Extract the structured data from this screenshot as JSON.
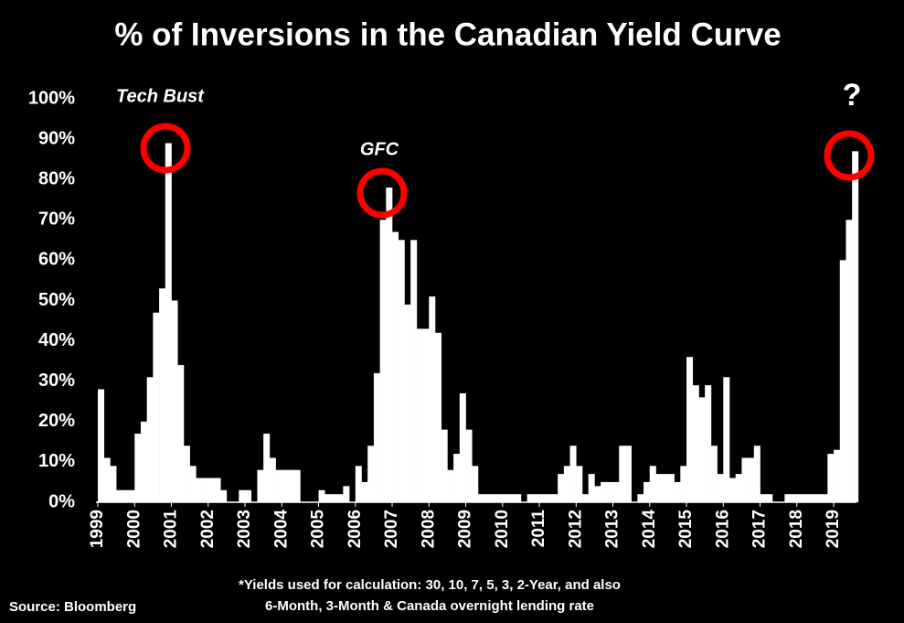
{
  "chart_data": {
    "type": "bar",
    "title": "% of Inversions in the Canadian Yield Curve",
    "annotations": [
      "Tech Bust",
      "GFC",
      "?"
    ],
    "footnote": [
      "*Yields used for calculation: 30, 10, 7, 5, 3, 2-Year, and also",
      "6-Month, 3-Month & Canada overnight lending rate"
    ],
    "source": "Source: Bloomberg",
    "color": "#ffffff",
    "x": [
      1999,
      1999.167,
      1999.333,
      1999.5,
      1999.667,
      1999.833,
      2000,
      2000.167,
      2000.333,
      2000.5,
      2000.667,
      2000.833,
      2001,
      2001.167,
      2001.333,
      2001.5,
      2001.667,
      2001.833,
      2002,
      2002.167,
      2002.333,
      2002.5,
      2002.667,
      2002.833,
      2003,
      2003.167,
      2003.333,
      2003.5,
      2003.667,
      2003.833,
      2004,
      2004.167,
      2004.333,
      2004.5,
      2004.667,
      2004.833,
      2005,
      2005.167,
      2005.333,
      2005.5,
      2005.667,
      2005.833,
      2006,
      2006.167,
      2006.333,
      2006.5,
      2006.667,
      2006.833,
      2007,
      2007.167,
      2007.333,
      2007.5,
      2007.667,
      2007.833,
      2008,
      2008.167,
      2008.333,
      2008.5,
      2008.667,
      2008.833,
      2009,
      2009.167,
      2009.333,
      2009.5,
      2009.667,
      2009.833,
      2010,
      2010.167,
      2010.333,
      2010.5,
      2010.667,
      2010.833,
      2011,
      2011.167,
      2011.333,
      2011.5,
      2011.667,
      2011.833,
      2012,
      2012.167,
      2012.333,
      2012.5,
      2012.667,
      2012.833,
      2013,
      2013.167,
      2013.333,
      2013.5,
      2013.667,
      2013.833,
      2014,
      2014.167,
      2014.333,
      2014.5,
      2014.667,
      2014.833,
      2015,
      2015.167,
      2015.333,
      2015.5,
      2015.667,
      2015.833,
      2016,
      2016.167,
      2016.333,
      2016.5,
      2016.667,
      2016.833,
      2017,
      2017.167,
      2017.333,
      2017.5,
      2017.667,
      2017.833,
      2018,
      2018.167,
      2018.333,
      2018.5,
      2018.667,
      2018.833,
      2019,
      2019.167,
      2019.333,
      2019.5
    ],
    "values": [
      28,
      11,
      9,
      3,
      3,
      3,
      17,
      20,
      31,
      47,
      53,
      89,
      50,
      34,
      14,
      9,
      6,
      6,
      6,
      6,
      3,
      0,
      0,
      3,
      3,
      0,
      8,
      17,
      11,
      8,
      8,
      8,
      8,
      0,
      0,
      0,
      3,
      2,
      2,
      2,
      4,
      0,
      9,
      5,
      14,
      32,
      70,
      78,
      67,
      65,
      49,
      65,
      43,
      43,
      51,
      42,
      18,
      8,
      12,
      27,
      18,
      9,
      2,
      2,
      2,
      2,
      2,
      2,
      2,
      0,
      2,
      2,
      2,
      2,
      2,
      7,
      9,
      14,
      9,
      2,
      7,
      4,
      5,
      5,
      5,
      14,
      14,
      0,
      2,
      5,
      9,
      7,
      7,
      7,
      5,
      9,
      36,
      29,
      26,
      29,
      14,
      7,
      31,
      6,
      7,
      11,
      11,
      14,
      2,
      2,
      0,
      0,
      2,
      2,
      2,
      2,
      2,
      2,
      2,
      12,
      13,
      60,
      70,
      87
    ],
    "xlim": [
      1998.95,
      2019.62
    ],
    "xticks": [
      1999,
      2000,
      2001,
      2002,
      2003,
      2004,
      2005,
      2006,
      2007,
      2008,
      2009,
      2010,
      2011,
      2012,
      2013,
      2014,
      2015,
      2016,
      2017,
      2018,
      2019
    ],
    "ylim": [
      0,
      100
    ],
    "yticks": [
      {
        "value": 0,
        "label": "0%"
      },
      {
        "value": 10,
        "label": "10%"
      },
      {
        "value": 20,
        "label": "20%"
      },
      {
        "value": 30,
        "label": "30%"
      },
      {
        "value": 40,
        "label": "40%"
      },
      {
        "value": 50,
        "label": "50%"
      },
      {
        "value": 60,
        "label": "60%"
      },
      {
        "value": 70,
        "label": "70%"
      },
      {
        "value": 80,
        "label": "80%"
      },
      {
        "value": 90,
        "label": "90%"
      },
      {
        "value": 100,
        "label": "100%"
      }
    ]
  }
}
